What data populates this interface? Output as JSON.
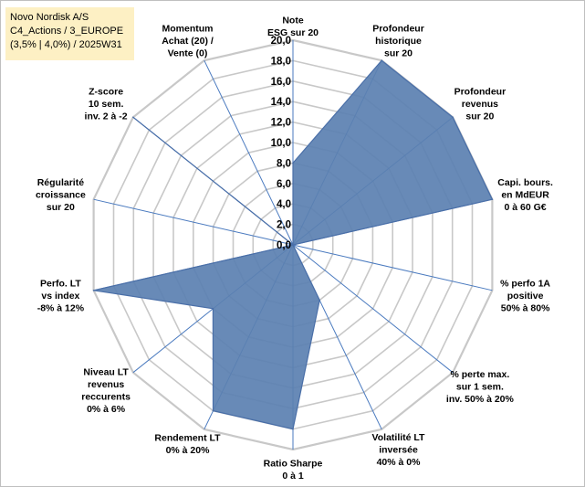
{
  "title_lines": [
    "Novo Nordisk A/S",
    "C4_Actions / 3_EUROPE",
    "(3,5% | 4,0%) / 2025W31"
  ],
  "colors": {
    "fill": "#5b80b1",
    "stroke": "#4a6fa8",
    "grid": "#c8c8c8",
    "spoke": "#4a7abf",
    "title_bg": "#fdf0c4"
  },
  "chart_data": {
    "type": "radar",
    "rmin": 0,
    "rmax": 20,
    "tick_labels": [
      "0,0",
      "2,0",
      "4,0",
      "6,0",
      "8,0",
      "10,0",
      "12,0",
      "14,0",
      "16,0",
      "18,0",
      "20,0"
    ],
    "axes": [
      {
        "label": [
          "Note",
          "ESG sur 20"
        ],
        "value": 8
      },
      {
        "label": [
          "Profondeur",
          "historique",
          "sur 20"
        ],
        "value": 20
      },
      {
        "label": [
          "Profondeur",
          "revenus",
          "sur 20"
        ],
        "value": 20
      },
      {
        "label": [
          "Capi. bours.",
          "en MdEUR",
          "0 à 60 G€"
        ],
        "value": 20
      },
      {
        "label": [
          "% perfo 1A",
          "positive",
          "50% à 80%"
        ],
        "value": 0
      },
      {
        "label": [
          "% perte max.",
          "sur 1 sem.",
          "inv. 50% à 20%"
        ],
        "value": 0
      },
      {
        "label": [
          "Volatilité LT",
          "inversée",
          "40% à 0%"
        ],
        "value": 6
      },
      {
        "label": [
          "Ratio Sharpe",
          "0 à 1"
        ],
        "value": 18
      },
      {
        "label": [
          "Rendement LT",
          "0% à 20%"
        ],
        "value": 18
      },
      {
        "label": [
          "Niveau LT",
          "revenus",
          "reccurents",
          "0% à 6%"
        ],
        "value": 10
      },
      {
        "label": [
          "Perfo. LT",
          "vs index",
          "-8% à 12%"
        ],
        "value": 20
      },
      {
        "label": [
          "Régularité",
          "croissance",
          "sur 20"
        ],
        "value": 0
      },
      {
        "label": [
          "Z-score",
          "10 sem.",
          "inv. 2 à -2"
        ],
        "value": 20
      },
      {
        "label": [
          "Momentum",
          "Achat (20) /",
          "Vente (0)"
        ],
        "value": 0
      }
    ]
  }
}
